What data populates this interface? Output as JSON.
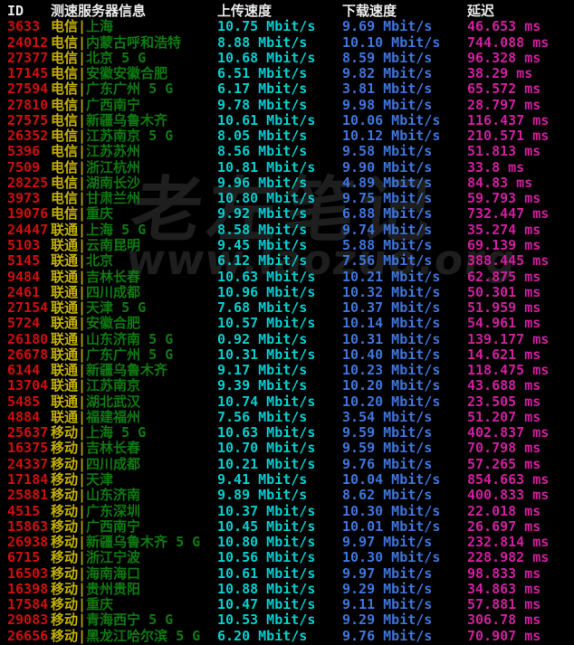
{
  "colors": {
    "red": "#cd0e0e",
    "yellow": "#c2af00",
    "green": "#0e7a12",
    "cyan": "#00cdcd",
    "blue": "#3f74d8",
    "magenta": "#cf1f9c",
    "white": "#e9e9e9",
    "watermark": "#1e1e1e",
    "background": "#000000"
  },
  "watermark": {
    "line1": "老左笔记",
    "line2": "www.laozuo.org"
  },
  "table": {
    "separator": "|",
    "header": {
      "id": "ID",
      "server": "测速服务器信息",
      "upload": "上传速度",
      "download": "下载速度",
      "latency": "延迟"
    }
  },
  "rows": [
    {
      "id": "3633",
      "carrier": "电信",
      "location": "上海",
      "upload": "10.75 Mbit/s",
      "download": "9.69 Mbit/s",
      "latency": "46.653 ms"
    },
    {
      "id": "24012",
      "carrier": "电信",
      "location": "内蒙古呼和浩特",
      "upload": "8.88 Mbit/s",
      "download": "10.10 Mbit/s",
      "latency": "744.088 ms"
    },
    {
      "id": "27377",
      "carrier": "电信",
      "location": "北京 5 G",
      "upload": "10.68 Mbit/s",
      "download": "8.59 Mbit/s",
      "latency": "96.328 ms"
    },
    {
      "id": "17145",
      "carrier": "电信",
      "location": "安徽安徽合肥",
      "upload": "6.51 Mbit/s",
      "download": "9.82 Mbit/s",
      "latency": "38.29 ms"
    },
    {
      "id": "27594",
      "carrier": "电信",
      "location": "广东广州 5 G",
      "upload": "6.17 Mbit/s",
      "download": "3.81 Mbit/s",
      "latency": "65.572 ms"
    },
    {
      "id": "27810",
      "carrier": "电信",
      "location": "广西南宁",
      "upload": "9.78 Mbit/s",
      "download": "9.98 Mbit/s",
      "latency": "28.797 ms"
    },
    {
      "id": "27575",
      "carrier": "电信",
      "location": "新疆乌鲁木齐",
      "upload": "10.61 Mbit/s",
      "download": "10.06 Mbit/s",
      "latency": "116.437 ms"
    },
    {
      "id": "26352",
      "carrier": "电信",
      "location": "江苏南京 5 G",
      "upload": "8.05 Mbit/s",
      "download": "10.12 Mbit/s",
      "latency": "210.571 ms"
    },
    {
      "id": "5396",
      "carrier": "电信",
      "location": "江苏苏州",
      "upload": "8.56 Mbit/s",
      "download": "9.58 Mbit/s",
      "latency": "51.813 ms"
    },
    {
      "id": "7509",
      "carrier": "电信",
      "location": "浙江杭州",
      "upload": "10.81 Mbit/s",
      "download": "9.90 Mbit/s",
      "latency": "33.8 ms"
    },
    {
      "id": "28225",
      "carrier": "电信",
      "location": "湖南长沙",
      "upload": "9.96 Mbit/s",
      "download": "4.89 Mbit/s",
      "latency": "84.83 ms"
    },
    {
      "id": "3973",
      "carrier": "电信",
      "location": "甘肃兰州",
      "upload": "10.80 Mbit/s",
      "download": "9.75 Mbit/s",
      "latency": "59.793 ms"
    },
    {
      "id": "19076",
      "carrier": "电信",
      "location": "重庆",
      "upload": "9.92 Mbit/s",
      "download": "6.88 Mbit/s",
      "latency": "732.447 ms"
    },
    {
      "id": "24447",
      "carrier": "联通",
      "location": "上海 5 G",
      "upload": "8.58 Mbit/s",
      "download": "9.74 Mbit/s",
      "latency": "35.274 ms"
    },
    {
      "id": "5103",
      "carrier": "联通",
      "location": "云南昆明",
      "upload": "9.45 Mbit/s",
      "download": "5.88 Mbit/s",
      "latency": "69.139 ms"
    },
    {
      "id": "5145",
      "carrier": "联通",
      "location": "北京",
      "upload": "6.12 Mbit/s",
      "download": "7.56 Mbit/s",
      "latency": "388.445 ms"
    },
    {
      "id": "9484",
      "carrier": "联通",
      "location": "吉林长春",
      "upload": "10.63 Mbit/s",
      "download": "10.21 Mbit/s",
      "latency": "62.875 ms"
    },
    {
      "id": "2461",
      "carrier": "联通",
      "location": "四川成都",
      "upload": "10.96 Mbit/s",
      "download": "10.32 Mbit/s",
      "latency": "50.301 ms"
    },
    {
      "id": "27154",
      "carrier": "联通",
      "location": "天津 5 G",
      "upload": "7.68 Mbit/s",
      "download": "10.37 Mbit/s",
      "latency": "51.959 ms"
    },
    {
      "id": "5724",
      "carrier": "联通",
      "location": "安徽合肥",
      "upload": "10.57 Mbit/s",
      "download": "10.14 Mbit/s",
      "latency": "54.961 ms"
    },
    {
      "id": "26180",
      "carrier": "联通",
      "location": "山东济南 5 G",
      "upload": "0.92 Mbit/s",
      "download": "10.31 Mbit/s",
      "latency": "139.177 ms"
    },
    {
      "id": "26678",
      "carrier": "联通",
      "location": "广东广州 5 G",
      "upload": "10.31 Mbit/s",
      "download": "10.40 Mbit/s",
      "latency": "14.621 ms"
    },
    {
      "id": "6144",
      "carrier": "联通",
      "location": "新疆乌鲁木齐",
      "upload": "9.17 Mbit/s",
      "download": "10.23 Mbit/s",
      "latency": "118.475 ms"
    },
    {
      "id": "13704",
      "carrier": "联通",
      "location": "江苏南京",
      "upload": "9.39 Mbit/s",
      "download": "10.20 Mbit/s",
      "latency": "43.688 ms"
    },
    {
      "id": "5485",
      "carrier": "联通",
      "location": "湖北武汉",
      "upload": "10.74 Mbit/s",
      "download": "10.20 Mbit/s",
      "latency": "23.505 ms"
    },
    {
      "id": "4884",
      "carrier": "联通",
      "location": "福建福州",
      "upload": "7.56 Mbit/s",
      "download": "3.54 Mbit/s",
      "latency": "51.207 ms"
    },
    {
      "id": "25637",
      "carrier": "移动",
      "location": "上海 5 G",
      "upload": "10.63 Mbit/s",
      "download": "9.59 Mbit/s",
      "latency": "402.837 ms"
    },
    {
      "id": "16375",
      "carrier": "移动",
      "location": "吉林长春",
      "upload": "10.70 Mbit/s",
      "download": "9.59 Mbit/s",
      "latency": "70.798 ms"
    },
    {
      "id": "24337",
      "carrier": "移动",
      "location": "四川成都",
      "upload": "10.21 Mbit/s",
      "download": "9.76 Mbit/s",
      "latency": "57.265 ms"
    },
    {
      "id": "17184",
      "carrier": "移动",
      "location": "天津",
      "upload": "9.41 Mbit/s",
      "download": "10.04 Mbit/s",
      "latency": "854.663 ms"
    },
    {
      "id": "25881",
      "carrier": "移动",
      "location": "山东济南",
      "upload": "9.89 Mbit/s",
      "download": "8.62 Mbit/s",
      "latency": "400.833 ms"
    },
    {
      "id": "4515",
      "carrier": "移动",
      "location": "广东深圳",
      "upload": "10.37 Mbit/s",
      "download": "10.30 Mbit/s",
      "latency": "22.018 ms"
    },
    {
      "id": "15863",
      "carrier": "移动",
      "location": "广西南宁",
      "upload": "10.45 Mbit/s",
      "download": "10.01 Mbit/s",
      "latency": "26.697 ms"
    },
    {
      "id": "26938",
      "carrier": "移动",
      "location": "新疆乌鲁木齐 5 G",
      "upload": "10.80 Mbit/s",
      "download": "9.97 Mbit/s",
      "latency": "232.814 ms"
    },
    {
      "id": "6715",
      "carrier": "移动",
      "location": "浙江宁波",
      "upload": "10.56 Mbit/s",
      "download": "10.30 Mbit/s",
      "latency": "228.982 ms"
    },
    {
      "id": "16503",
      "carrier": "移动",
      "location": "海南海口",
      "upload": "10.61 Mbit/s",
      "download": "9.97 Mbit/s",
      "latency": "98.833 ms"
    },
    {
      "id": "16398",
      "carrier": "移动",
      "location": "贵州贵阳",
      "upload": "10.88 Mbit/s",
      "download": "9.29 Mbit/s",
      "latency": "34.863 ms"
    },
    {
      "id": "17584",
      "carrier": "移动",
      "location": "重庆",
      "upload": "10.47 Mbit/s",
      "download": "9.11 Mbit/s",
      "latency": "57.881 ms"
    },
    {
      "id": "29083",
      "carrier": "移动",
      "location": "青海西宁 5 G",
      "upload": "10.53 Mbit/s",
      "download": "9.29 Mbit/s",
      "latency": "306.78 ms"
    },
    {
      "id": "26656",
      "carrier": "移动",
      "location": "黑龙江哈尔滨 5 G",
      "upload": "6.20 Mbit/s",
      "download": "9.76 Mbit/s",
      "latency": "70.907 ms"
    }
  ]
}
